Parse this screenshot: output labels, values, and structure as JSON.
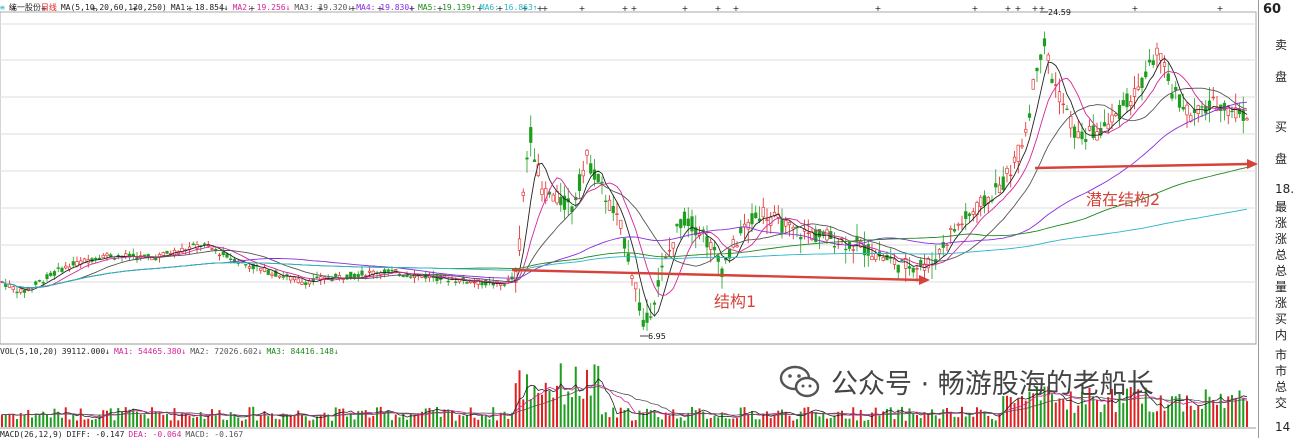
{
  "main_legend": {
    "stock_name": "统一股份",
    "period": "日线",
    "ma_header": "MA(5,10,20,60,120,250)",
    "items": [
      {
        "label": "MA1: 18.854",
        "arrow": "↓",
        "color": "#222222"
      },
      {
        "label": "MA2: 19.256",
        "arrow": "↓",
        "color": "#d4259a"
      },
      {
        "label": "MA3: 19.320",
        "arrow": "↓",
        "color": "#555555"
      },
      {
        "label": "MA4: 19.830",
        "arrow": "↓",
        "color": "#8a2be2"
      },
      {
        "label": "MA5: 19.139",
        "arrow": "↑",
        "color": "#1e8a1e"
      },
      {
        "label": "MA6: 16.863",
        "arrow": "↑",
        "color": "#2cb5c9"
      }
    ]
  },
  "vol_legend": {
    "header": "VOL(5,10,20)",
    "items": [
      {
        "label": "39112.000",
        "arrow": "↓",
        "color": "#222222"
      },
      {
        "label": "MA1: 54465.380",
        "arrow": "↓",
        "color": "#d4259a"
      },
      {
        "label": "MA2: 72026.602",
        "arrow": "↓",
        "color": "#555555"
      },
      {
        "label": "MA3: 84416.148",
        "arrow": "↓",
        "color": "#1e8a1e"
      }
    ]
  },
  "macd_legend": {
    "header": "MACD(26,12,9)",
    "items": [
      {
        "label": "DIFF: -0.147",
        "color": "#222222"
      },
      {
        "label": "DEA: -0.064",
        "color": "#d4259a"
      },
      {
        "label": "MACD: -0.167",
        "color": "#555555"
      }
    ]
  },
  "chart_data": {
    "type": "candlestick",
    "price_annotations": [
      {
        "label": "24.59",
        "kind": "high"
      },
      {
        "label": "6.95",
        "kind": "low"
      }
    ],
    "structures": [
      {
        "label": "结构1"
      },
      {
        "label": "潜在结构2"
      }
    ],
    "colors": {
      "up": "#e02020",
      "down": "#1e9e1e",
      "ma5": "#222222",
      "ma10": "#d4259a",
      "ma20": "#555555",
      "ma60": "#8a2be2",
      "ma120": "#1e8a1e",
      "ma250": "#2cb5c9",
      "arrow": "#d6433a",
      "grid": "#dddddd"
    }
  },
  "sidebar": {
    "top_label": "60",
    "labels": [
      "卖",
      "盘",
      "买",
      "盘",
      "18.",
      "最",
      "涨",
      "涨",
      "总",
      "总",
      "量",
      "涨",
      "买",
      "内",
      "市",
      "市",
      "总",
      "交",
      "14"
    ]
  },
  "watermark": {
    "text": "公众号 · 畅游股海的老船长"
  }
}
